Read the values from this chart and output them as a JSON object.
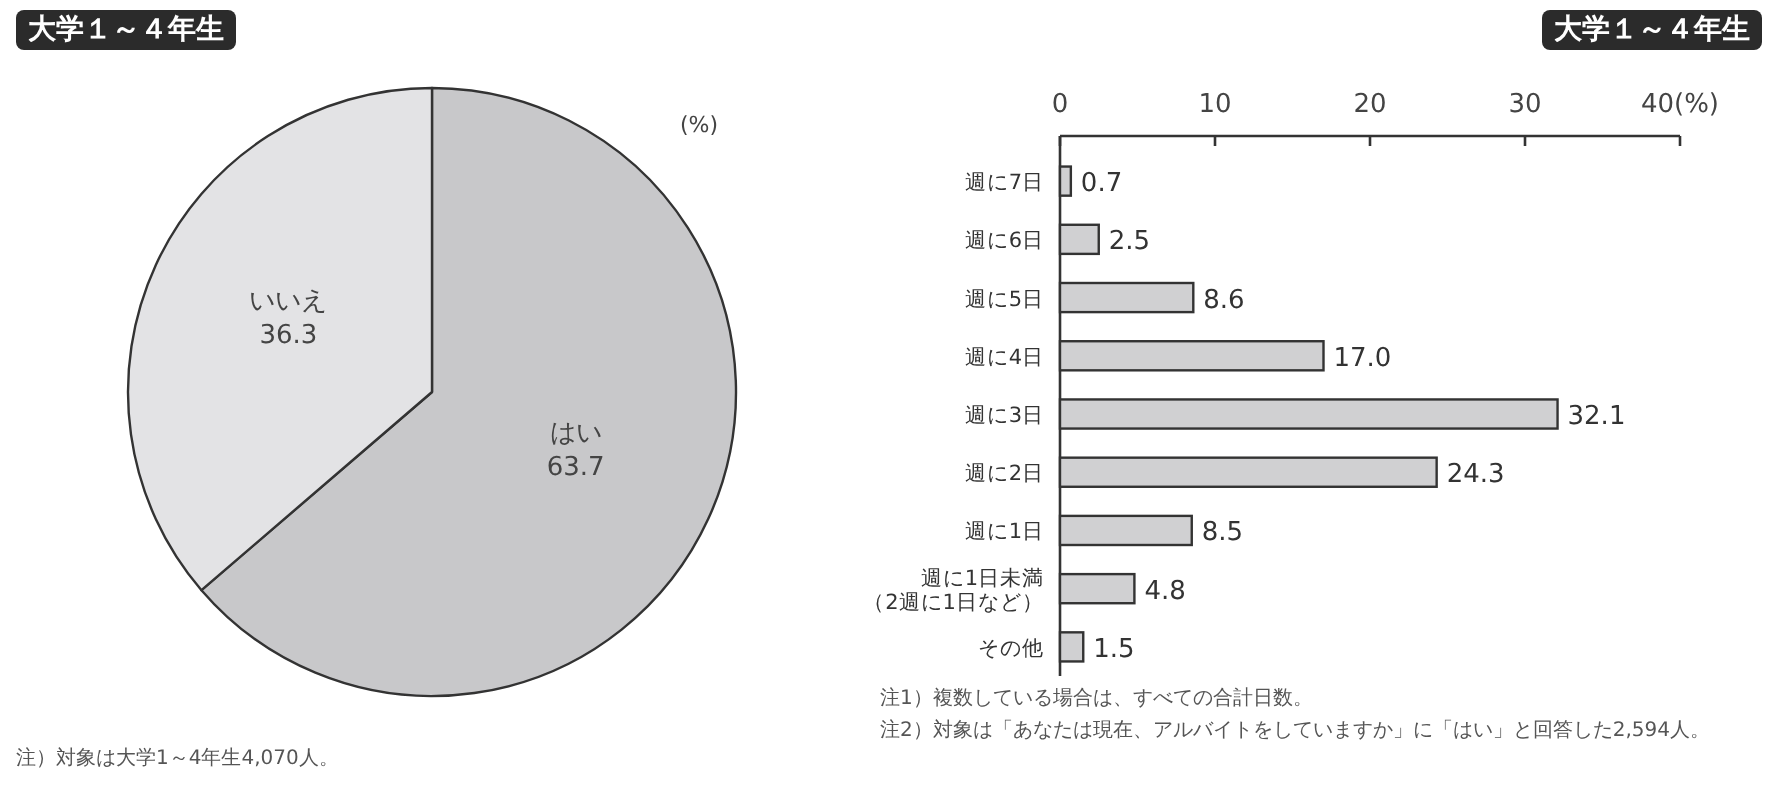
{
  "chart_data": [
    {
      "type": "pie",
      "title": "大学１～４年生",
      "categories": [
        "はい",
        "いいえ"
      ],
      "values": [
        63.7,
        36.3
      ],
      "colors": [
        "#c8c8ca",
        "#e3e3e5"
      ],
      "data_labels": true,
      "annotations": [
        "(%)",
        "注）対象は大学1～4年生4,070人。"
      ]
    },
    {
      "type": "bar",
      "orientation": "horizontal",
      "title": "大学１～４年生",
      "categories": [
        "週に7日",
        "週に6日",
        "週に5日",
        "週に4日",
        "週に3日",
        "週に2日",
        "週に1日",
        "週に1日未満（2週に1日など）",
        "その他"
      ],
      "values": [
        0.7,
        2.5,
        8.6,
        17.0,
        32.1,
        24.3,
        8.5,
        4.8,
        1.5
      ],
      "value_labels": [
        "0.7",
        "2.5",
        "8.6",
        "17.0",
        "32.1",
        "24.3",
        "8.5",
        "4.8",
        "1.5"
      ],
      "color": "#d0d0d2",
      "xlim": [
        0,
        40
      ],
      "xticks": [
        0,
        10,
        20,
        30,
        {
          "value": 40,
          "label": "40(%)"
        }
      ],
      "annotations": [
        "注1）複数している場合は、すべての合計日数。",
        "注2）対象は「あなたは現在、アルバイトをしていますか」に「はい」と回答した2,594人。"
      ]
    }
  ]
}
